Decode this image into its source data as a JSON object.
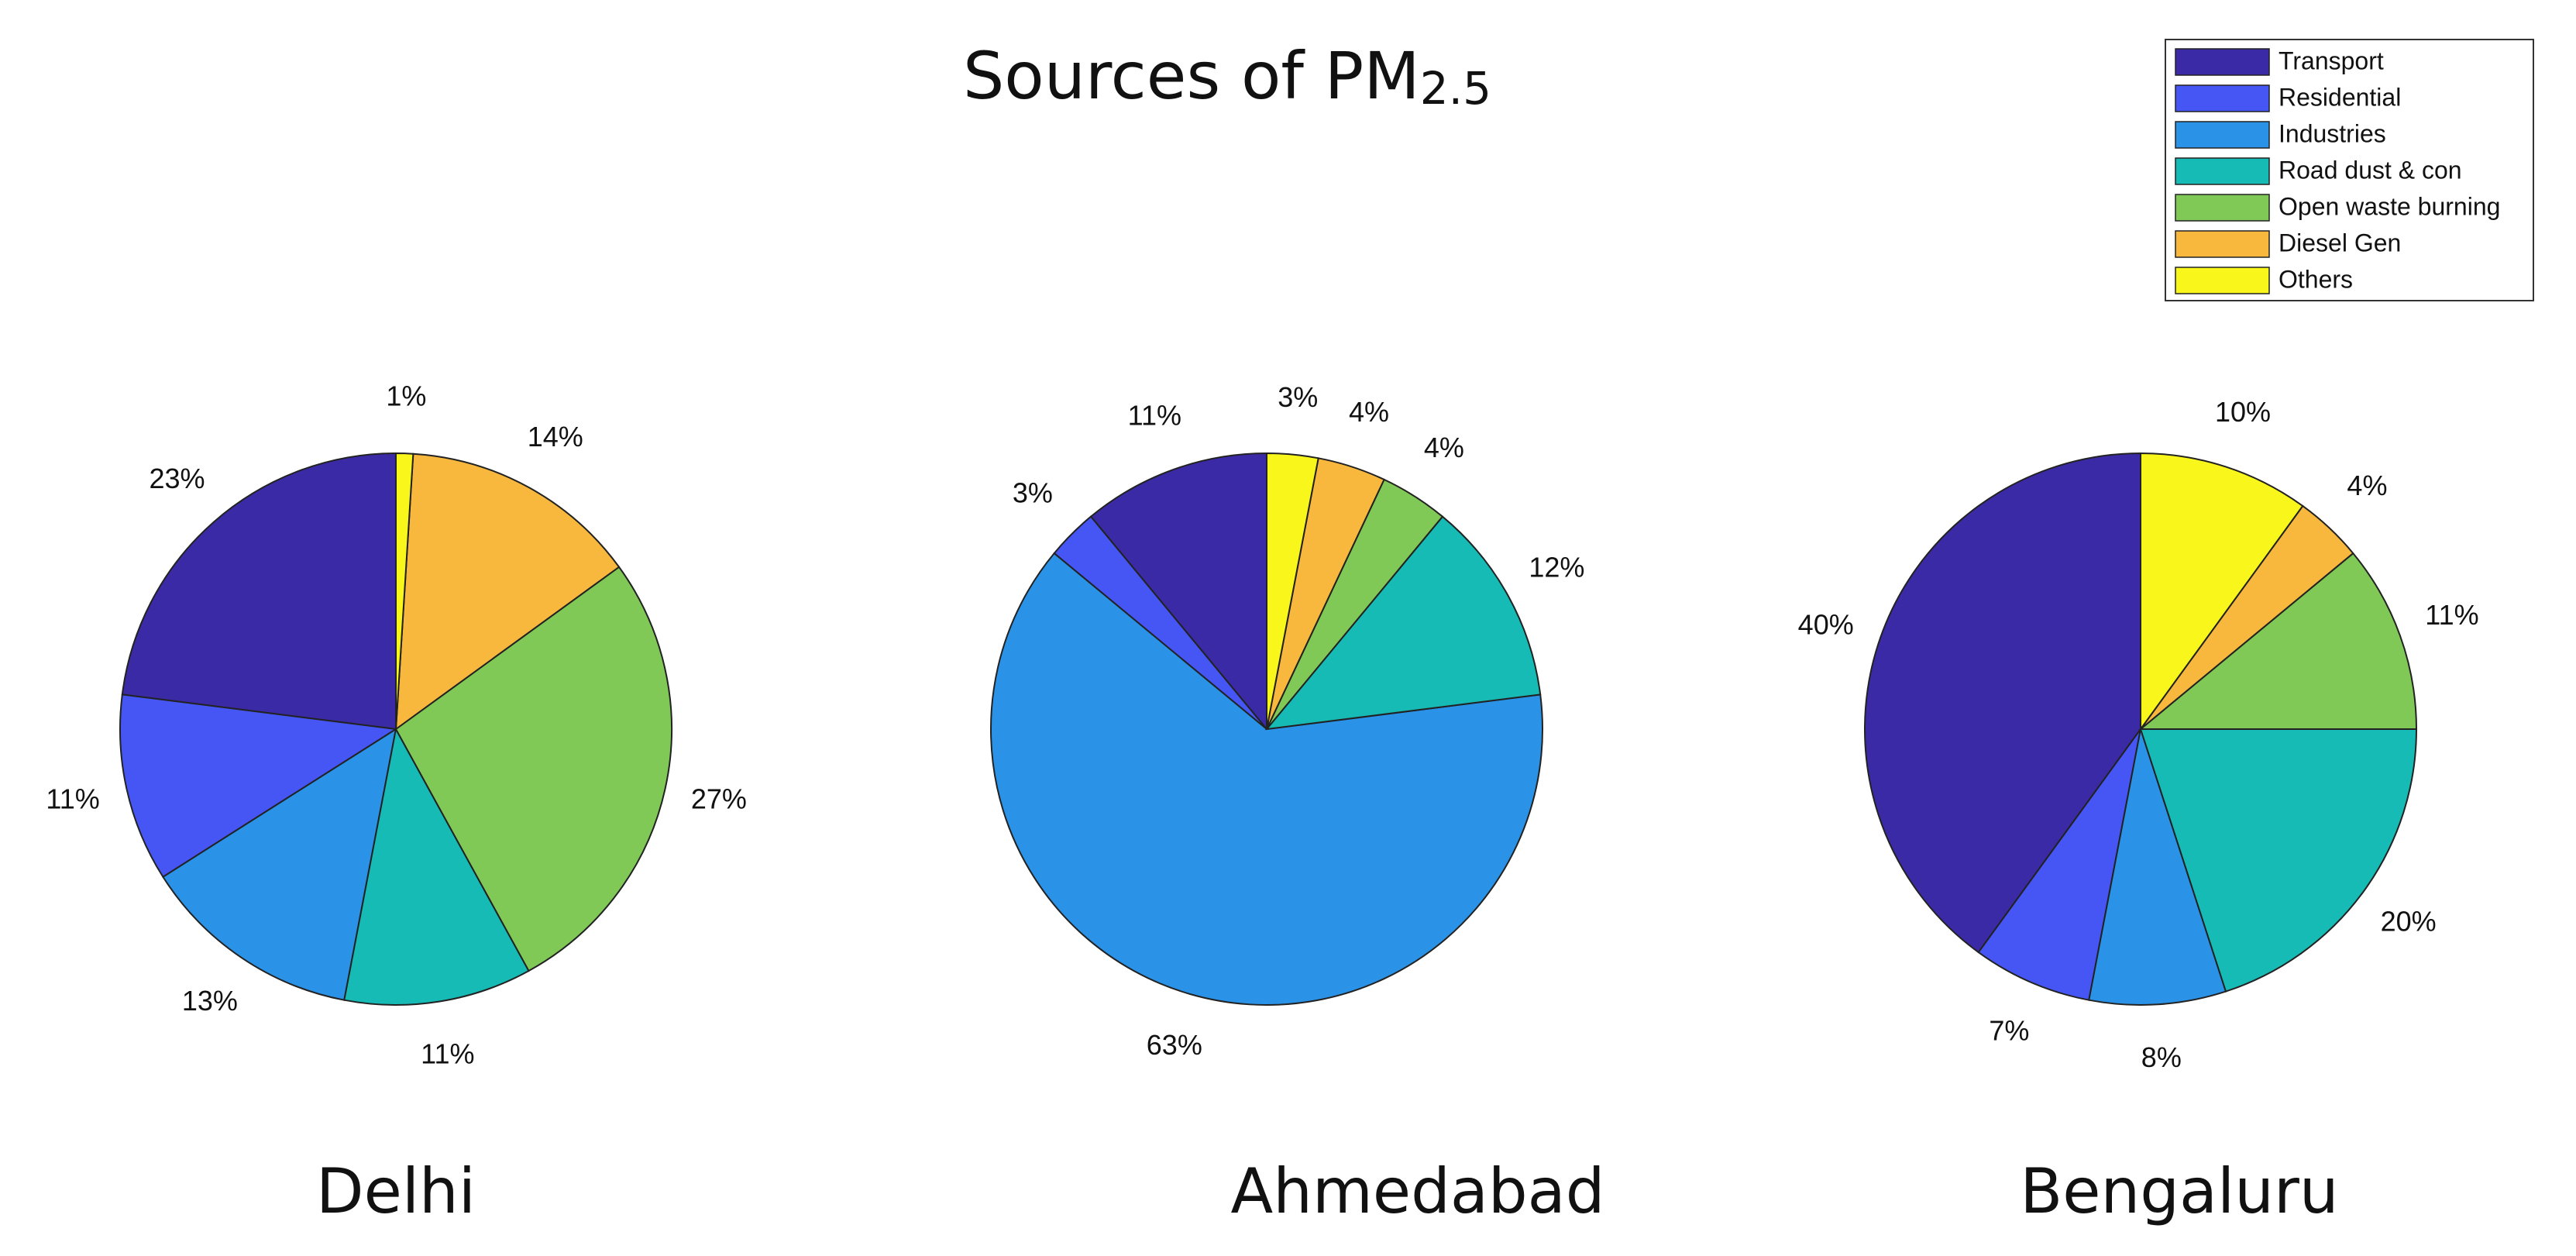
{
  "title": "Sources of PM",
  "title_subscript": "2.5",
  "chart_data": [
    {
      "type": "pie",
      "title": "Delhi",
      "categories": [
        "Transport",
        "Residential",
        "Industries",
        "Road dust & con",
        "Open waste burning",
        "Diesel Gen",
        "Others"
      ],
      "values": [
        23,
        11,
        13,
        11,
        27,
        14,
        1
      ],
      "value_labels": [
        "23%",
        "11%",
        "13%",
        "11%",
        "27%",
        "14%",
        "1%"
      ],
      "colors": [
        "#3b2aa5",
        "#4656f5",
        "#2a93e8",
        "#17bbb5",
        "#80c956",
        "#f8b83e",
        "#f8f61a"
      ]
    },
    {
      "type": "pie",
      "title": "Ahmedabad",
      "categories": [
        "Transport",
        "Residential",
        "Industries",
        "Road dust & con",
        "Open waste burning",
        "Diesel Gen",
        "Others"
      ],
      "values": [
        11,
        3,
        63,
        12,
        4,
        4,
        3
      ],
      "value_labels": [
        "11%",
        "3%",
        "63%",
        "12%",
        "4%",
        "4%",
        "3%"
      ],
      "colors": [
        "#3b2aa5",
        "#4656f5",
        "#2a93e8",
        "#17bbb5",
        "#80c956",
        "#f8b83e",
        "#f8f61a"
      ]
    },
    {
      "type": "pie",
      "title": "Bengaluru",
      "categories": [
        "Transport",
        "Residential",
        "Industries",
        "Road dust & con",
        "Open waste burning",
        "Diesel Gen",
        "Others"
      ],
      "values": [
        40,
        7,
        8,
        20,
        11,
        4,
        10
      ],
      "value_labels": [
        "40%",
        "7%",
        "8%",
        "20%",
        "11%",
        "4%",
        "10%"
      ],
      "colors": [
        "#3b2aa5",
        "#4656f5",
        "#2a93e8",
        "#17bbb5",
        "#80c956",
        "#f8b83e",
        "#f8f61a"
      ]
    }
  ]
}
